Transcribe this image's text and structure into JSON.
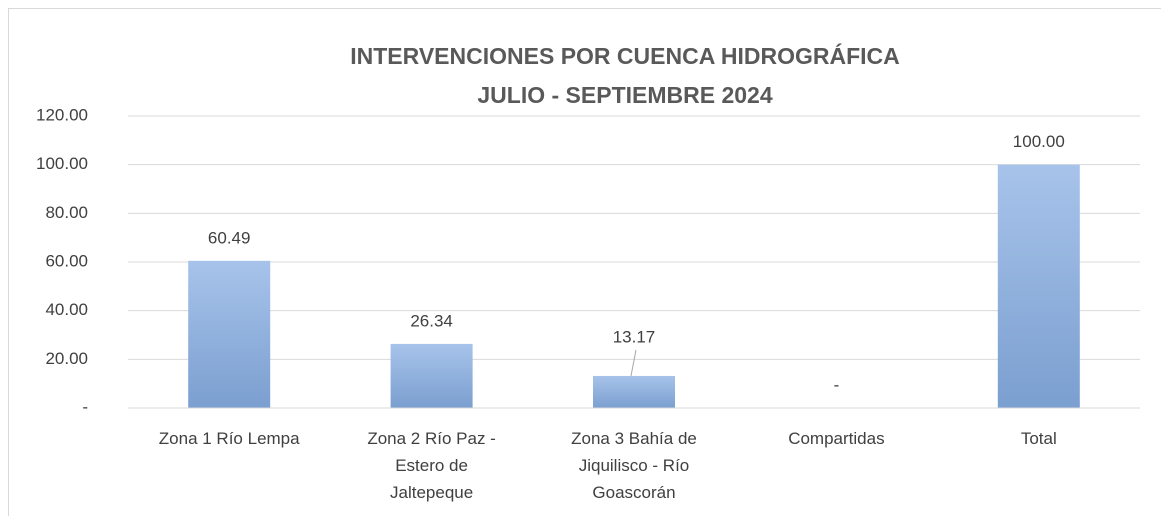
{
  "chart_data": {
    "type": "bar",
    "title": "INTERVENCIONES POR CUENCA HIDROGRÁFICA",
    "subtitle": "JULIO - SEPTIEMBRE 2024",
    "categories": [
      "Zona 1 Río Lempa",
      "Zona 2 Río Paz - Estero de Jaltepeque",
      "Zona 3 Bahía de Jiquilisco - Río Goascorán",
      "Compartidas",
      "Total"
    ],
    "values": [
      60.49,
      26.34,
      13.17,
      0,
      100
    ],
    "value_labels": [
      "60.49",
      "26.34",
      "13.17",
      "-",
      "100.00"
    ],
    "color": "#8eb0df",
    "ylim": [
      0,
      120
    ],
    "yticks": [
      {
        "value": 0,
        "label": "-"
      },
      {
        "value": 20,
        "label": "20.00"
      },
      {
        "value": 40,
        "label": "40.00"
      },
      {
        "value": 60,
        "label": "60.00"
      },
      {
        "value": 80,
        "label": "80.00"
      },
      {
        "value": 100,
        "label": "100.00"
      },
      {
        "value": 120,
        "label": "120.00"
      }
    ],
    "grid": true
  }
}
